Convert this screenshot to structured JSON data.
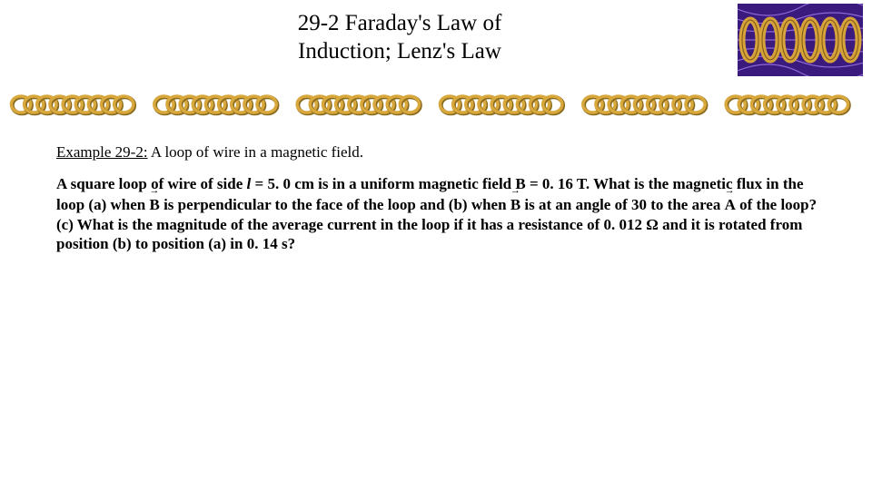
{
  "title": {
    "line1": "29-2 Faraday's Law of",
    "line2": "Induction; Lenz's Law",
    "fontsize": 25,
    "color": "#000000"
  },
  "example": {
    "label": "Example 29-2:",
    "desc": " A loop of wire in a magnetic field.",
    "fontsize": 17
  },
  "problem": {
    "p1a": "A square loop of wire of side ",
    "p1_ell": "l",
    "p1b": " = 5. 0 cm is in a uniform magnetic field B = 0. 16 T. What is the magnetic flux in the loop (a) when ",
    "p1_vecB1": "B",
    "p1c": " is perpendicular to the face of the loop and (b) when ",
    "p1_vecB2": "B",
    "p1d": " is at an angle of 30 to the area ",
    "p1_vecA": "A",
    "p1e": " of the loop? (c) What is the magnitude of the average current in the loop if it has a resistance of 0. 012 Ω and it is rotated from position (b) to position (a) in 0. 14 s?",
    "fontsize": 17
  },
  "decor": {
    "coil_count": 6,
    "coil_fill": "#d6a33a",
    "coil_stroke": "#7a5414",
    "field_bg": "#3a1b7d",
    "field_line": "#b488ff",
    "divider_segments": 6,
    "divider_gold": "#d8a83c",
    "divider_shadow": "#8a6a1e"
  }
}
